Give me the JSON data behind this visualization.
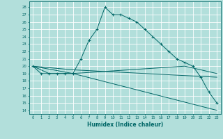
{
  "xlabel": "Humidex (Indice chaleur)",
  "ylabel": "",
  "background_color": "#b2dfdb",
  "grid_color": "#ffffff",
  "line_color": "#006666",
  "xlim": [
    -0.5,
    23.5
  ],
  "ylim": [
    13.5,
    28.8
  ],
  "yticks": [
    14,
    15,
    16,
    17,
    18,
    19,
    20,
    21,
    22,
    23,
    24,
    25,
    26,
    27,
    28
  ],
  "xticks": [
    0,
    1,
    2,
    3,
    4,
    5,
    6,
    7,
    8,
    9,
    10,
    11,
    12,
    13,
    14,
    15,
    16,
    17,
    18,
    19,
    20,
    21,
    22,
    23
  ],
  "series": [
    {
      "x": [
        0,
        1,
        2,
        3,
        4,
        5,
        6,
        7,
        8,
        9,
        10,
        11,
        12,
        13,
        14,
        15,
        16,
        17,
        18,
        19,
        20,
        21,
        22,
        23
      ],
      "y": [
        20,
        19,
        19,
        19,
        19,
        19,
        21,
        23.5,
        25,
        28,
        27,
        27,
        26.5,
        26,
        25,
        24,
        23,
        22,
        21,
        20.5,
        20,
        18.5,
        16.5,
        15
      ],
      "marker": "+"
    },
    {
      "x": [
        0,
        1,
        2,
        3,
        4,
        5,
        23
      ],
      "y": [
        20,
        19.5,
        19,
        19,
        19,
        19,
        14
      ],
      "marker": null
    },
    {
      "x": [
        0,
        5,
        19,
        23
      ],
      "y": [
        20,
        19,
        20,
        19
      ],
      "marker": null
    },
    {
      "x": [
        0,
        5,
        23
      ],
      "y": [
        20,
        19.5,
        18.5
      ],
      "marker": null
    }
  ]
}
